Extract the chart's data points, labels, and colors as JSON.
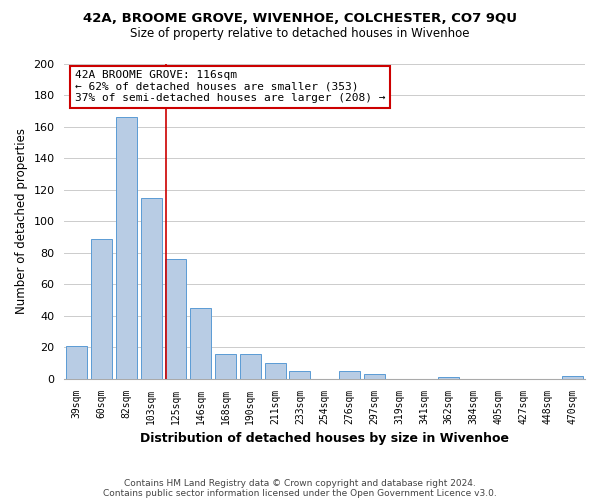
{
  "title1": "42A, BROOME GROVE, WIVENHOE, COLCHESTER, CO7 9QU",
  "title2": "Size of property relative to detached houses in Wivenhoe",
  "xlabel": "Distribution of detached houses by size in Wivenhoe",
  "ylabel": "Number of detached properties",
  "bar_labels": [
    "39sqm",
    "60sqm",
    "82sqm",
    "103sqm",
    "125sqm",
    "146sqm",
    "168sqm",
    "190sqm",
    "211sqm",
    "233sqm",
    "254sqm",
    "276sqm",
    "297sqm",
    "319sqm",
    "341sqm",
    "362sqm",
    "384sqm",
    "405sqm",
    "427sqm",
    "448sqm",
    "470sqm"
  ],
  "bar_values": [
    21,
    89,
    166,
    115,
    76,
    45,
    16,
    16,
    10,
    5,
    0,
    5,
    3,
    0,
    0,
    1,
    0,
    0,
    0,
    0,
    2
  ],
  "bar_color": "#b8cce4",
  "bar_edge_color": "#5b9bd5",
  "ylim": [
    0,
    200
  ],
  "yticks": [
    0,
    20,
    40,
    60,
    80,
    100,
    120,
    140,
    160,
    180,
    200
  ],
  "annotation_title": "42A BROOME GROVE: 116sqm",
  "annotation_line1": "← 62% of detached houses are smaller (353)",
  "annotation_line2": "37% of semi-detached houses are larger (208) →",
  "annotation_box_color": "#ffffff",
  "annotation_box_edge": "#cc0000",
  "property_line_color": "#cc0000",
  "footer1": "Contains HM Land Registry data © Crown copyright and database right 2024.",
  "footer2": "Contains public sector information licensed under the Open Government Licence v3.0.",
  "background_color": "#ffffff",
  "grid_color": "#cccccc"
}
